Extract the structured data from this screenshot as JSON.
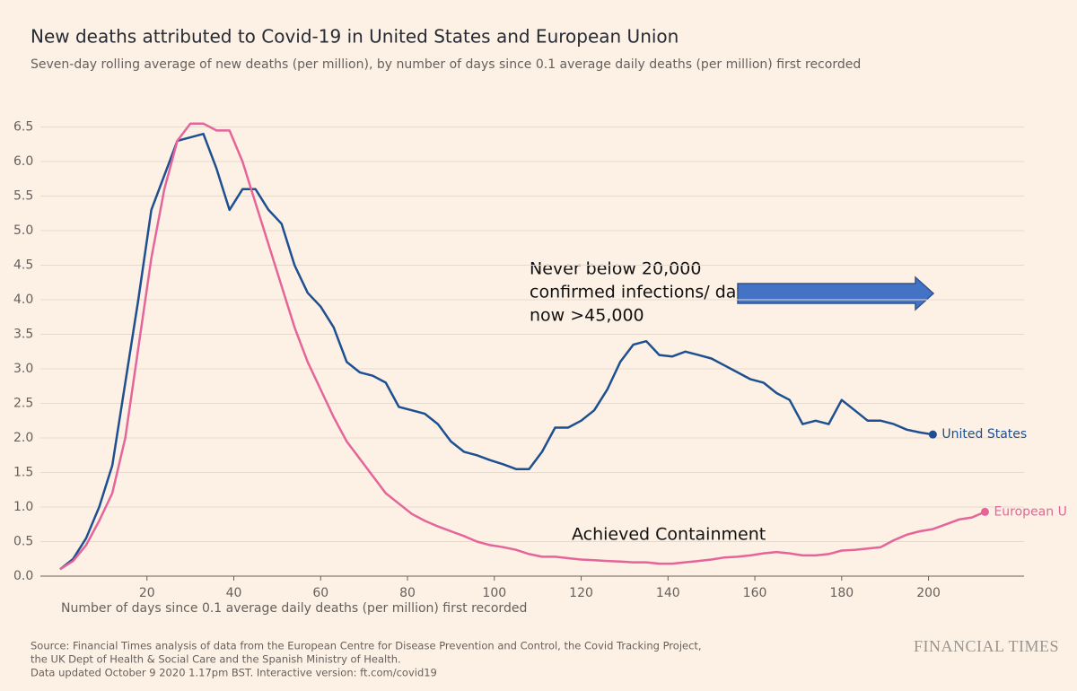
{
  "chart_data": {
    "type": "line",
    "title": "New deaths attributed to Covid-19 in United States and European Union",
    "subtitle": "Seven-day rolling average of new deaths (per million), by number of days since 0.1 average daily deaths (per million) first recorded",
    "x_label": "Number of days since 0.1 average daily deaths (per million) first recorded",
    "x": [
      0,
      3,
      6,
      9,
      12,
      15,
      18,
      21,
      24,
      27,
      30,
      33,
      36,
      39,
      42,
      45,
      48,
      51,
      54,
      57,
      60,
      63,
      66,
      69,
      72,
      75,
      78,
      81,
      84,
      87,
      90,
      93,
      96,
      99,
      102,
      105,
      108,
      111,
      114,
      117,
      120,
      123,
      126,
      129,
      132,
      135,
      138,
      141,
      144,
      147,
      150,
      153,
      156,
      159,
      162,
      165,
      168,
      171,
      174,
      177,
      180,
      183,
      186,
      189,
      192,
      195,
      198,
      201,
      204,
      207,
      210,
      213
    ],
    "series": [
      {
        "name": "United States",
        "color": "#1d4f91",
        "values": [
          0.1,
          0.25,
          0.55,
          1.0,
          1.6,
          2.8,
          4.0,
          5.3,
          5.8,
          6.3,
          6.35,
          6.4,
          5.9,
          5.3,
          5.6,
          5.6,
          5.3,
          5.1,
          4.5,
          4.1,
          3.9,
          3.6,
          3.1,
          2.95,
          2.9,
          2.8,
          2.45,
          2.4,
          2.35,
          2.2,
          1.95,
          1.8,
          1.75,
          1.68,
          1.62,
          1.55,
          1.55,
          1.8,
          2.15,
          2.15,
          2.25,
          2.4,
          2.7,
          3.1,
          3.35,
          3.4,
          3.2,
          3.18,
          3.25,
          3.2,
          3.15,
          3.05,
          2.95,
          2.85,
          2.8,
          2.65,
          2.55,
          2.2,
          2.25,
          2.2,
          2.55,
          2.4,
          2.25,
          2.25,
          2.2,
          2.12,
          2.08,
          2.05,
          null,
          null,
          null,
          null
        ]
      },
      {
        "name": "European U",
        "color": "#e5649a",
        "values": [
          0.1,
          0.22,
          0.45,
          0.8,
          1.2,
          2.0,
          3.3,
          4.6,
          5.6,
          6.3,
          6.55,
          6.55,
          6.45,
          6.45,
          6.0,
          5.4,
          4.8,
          4.2,
          3.6,
          3.1,
          2.7,
          2.3,
          1.95,
          1.7,
          1.45,
          1.2,
          1.05,
          0.9,
          0.8,
          0.72,
          0.65,
          0.58,
          0.5,
          0.45,
          0.42,
          0.38,
          0.32,
          0.28,
          0.28,
          0.26,
          0.24,
          0.23,
          0.22,
          0.21,
          0.2,
          0.2,
          0.18,
          0.18,
          0.2,
          0.22,
          0.24,
          0.27,
          0.28,
          0.3,
          0.33,
          0.35,
          0.33,
          0.3,
          0.3,
          0.32,
          0.37,
          0.38,
          0.4,
          0.42,
          0.52,
          0.6,
          0.65,
          0.68,
          0.75,
          0.82,
          0.85,
          0.93
        ]
      }
    ],
    "xlim": [
      0,
      222
    ],
    "ylim": [
      0,
      6.65
    ],
    "xticks": [
      20,
      40,
      60,
      80,
      100,
      120,
      140,
      160,
      180,
      200
    ],
    "yticks": [
      {
        "value": 0,
        "label": "0.0"
      },
      0.5,
      {
        "value": 1,
        "label": "1.0"
      },
      1.5,
      {
        "value": 2,
        "label": "2.0"
      },
      2.5,
      {
        "value": 3,
        "label": "3.0"
      },
      3.5,
      {
        "value": 4,
        "label": "4.0"
      },
      4.5,
      {
        "value": 5,
        "label": "5.0"
      },
      5.5,
      {
        "value": 6,
        "label": "6.0"
      },
      6.5
    ],
    "grid": true,
    "annotations": [
      "Never below 20,000",
      "confirmed infections/ day;",
      "now >45,000",
      "Achieved Containment"
    ],
    "source": [
      "Source: Financial Times analysis of data from the European Centre for Disease Prevention and Control, the Covid Tracking Project,",
      "the UK Dept of Health & Social Care and the Spanish Ministry of Health.",
      "Data updated October 9 2020 1.17pm BST. Interactive version: ft.com/covid19"
    ],
    "brand": "FINANCIAL TIMES"
  }
}
